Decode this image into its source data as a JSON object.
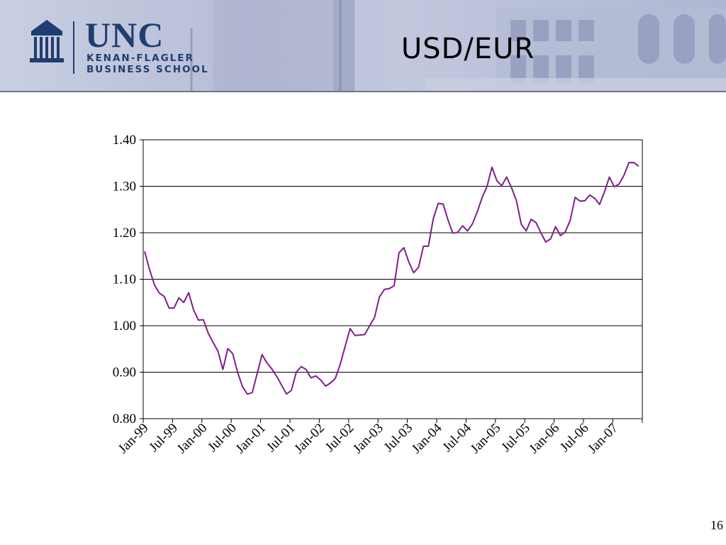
{
  "header": {
    "logo_main": "UNC",
    "logo_line1": "KENAN-FLAGLER",
    "logo_line2": "BUSINESS SCHOOL"
  },
  "title": "USD/EUR",
  "page_number": "16",
  "chart_data": {
    "type": "line",
    "title": "",
    "xlabel": "",
    "ylabel": "",
    "ylim": [
      0.8,
      1.4
    ],
    "y_ticks": [
      "0.80",
      "0.90",
      "1.00",
      "1.10",
      "1.20",
      "1.30",
      "1.40"
    ],
    "x_tick_labels": [
      "Jan-99",
      "Jul-99",
      "Jan-00",
      "Jul-00",
      "Jan-01",
      "Jul-01",
      "Jan-02",
      "Jul-02",
      "Jan-03",
      "Jul-03",
      "Jan-04",
      "Jul-04",
      "Jan-05",
      "Jul-05",
      "Jan-06",
      "Jul-06",
      "Jan-07"
    ],
    "grid": "horizontal",
    "line_color": "#7f1f8a",
    "start_month": "Jan-99",
    "series": [
      {
        "values": [
          1.16,
          1.121,
          1.088,
          1.07,
          1.063,
          1.038,
          1.038,
          1.06,
          1.05,
          1.071,
          1.034,
          1.012,
          1.013,
          0.984,
          0.964,
          0.945,
          0.906,
          0.951,
          0.94,
          0.9,
          0.869,
          0.853,
          0.856,
          0.897,
          0.938,
          0.92,
          0.907,
          0.891,
          0.872,
          0.853,
          0.861,
          0.9,
          0.912,
          0.906,
          0.888,
          0.892,
          0.883,
          0.87,
          0.877,
          0.887,
          0.918,
          0.956,
          0.994,
          0.979,
          0.98,
          0.981,
          1.0,
          1.018,
          1.062,
          1.078,
          1.08,
          1.086,
          1.157,
          1.168,
          1.137,
          1.114,
          1.126,
          1.171,
          1.171,
          1.23,
          1.263,
          1.262,
          1.228,
          1.199,
          1.201,
          1.215,
          1.204,
          1.219,
          1.245,
          1.276,
          1.3,
          1.341,
          1.312,
          1.301,
          1.32,
          1.297,
          1.269,
          1.218,
          1.204,
          1.229,
          1.222,
          1.2,
          1.18,
          1.187,
          1.213,
          1.194,
          1.202,
          1.227,
          1.276,
          1.268,
          1.269,
          1.281,
          1.274,
          1.261,
          1.288,
          1.32,
          1.299,
          1.305,
          1.324,
          1.351,
          1.351,
          1.343
        ]
      }
    ]
  }
}
